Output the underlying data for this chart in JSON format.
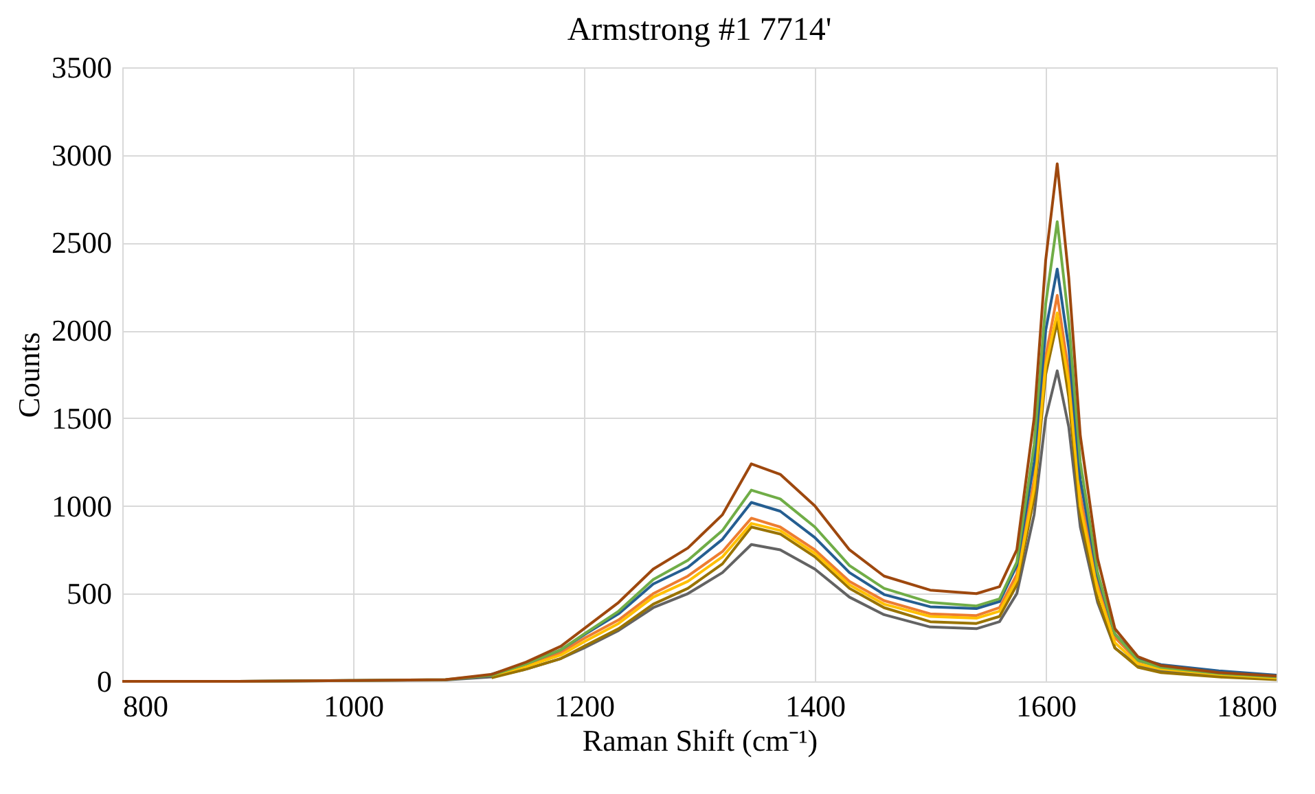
{
  "chart_data": {
    "type": "line",
    "title": "Armstrong #1 7714'",
    "xlabel": "Raman Shift (cm⁻¹)",
    "ylabel": "Counts",
    "x": [
      800,
      900,
      1000,
      1080,
      1120,
      1150,
      1180,
      1200,
      1230,
      1260,
      1290,
      1320,
      1345,
      1370,
      1400,
      1430,
      1460,
      1500,
      1540,
      1560,
      1575,
      1590,
      1600,
      1610,
      1620,
      1630,
      1645,
      1660,
      1680,
      1700,
      1750,
      1800
    ],
    "series": [
      {
        "color": "#636363",
        "values": [
          0,
          0,
          5,
          8,
          25,
          70,
          130,
          190,
          290,
          420,
          500,
          620,
          780,
          750,
          640,
          480,
          380,
          310,
          300,
          340,
          500,
          950,
          1500,
          1770,
          1450,
          880,
          450,
          190,
          90,
          60,
          35,
          20
        ]
      },
      {
        "color": "#997300",
        "values": [
          null,
          null,
          null,
          null,
          20,
          70,
          130,
          200,
          300,
          440,
          530,
          670,
          880,
          840,
          710,
          530,
          420,
          340,
          330,
          370,
          550,
          1050,
          1750,
          2050,
          1620,
          940,
          470,
          190,
          80,
          50,
          25,
          10
        ]
      },
      {
        "color": "#ed7d31",
        "values": [
          null,
          null,
          null,
          null,
          null,
          90,
          165,
          245,
          350,
          500,
          600,
          740,
          930,
          880,
          750,
          570,
          460,
          385,
          375,
          420,
          610,
          1150,
          1850,
          2200,
          1760,
          1060,
          560,
          250,
          115,
          85,
          50,
          25
        ]
      },
      {
        "color": "#ffc000",
        "values": [
          null,
          null,
          null,
          null,
          35,
          85,
          150,
          225,
          330,
          480,
          570,
          710,
          900,
          860,
          730,
          550,
          440,
          370,
          360,
          400,
          580,
          1100,
          1800,
          2100,
          1700,
          1000,
          520,
          220,
          100,
          70,
          40,
          20
        ]
      },
      {
        "color": "#255e91",
        "values": [
          null,
          null,
          null,
          null,
          40,
          100,
          180,
          265,
          385,
          555,
          650,
          810,
          1020,
          970,
          820,
          620,
          495,
          425,
          415,
          455,
          660,
          1250,
          2000,
          2350,
          1900,
          1150,
          600,
          270,
          130,
          95,
          60,
          35
        ]
      },
      {
        "color": "#70ad47",
        "values": [
          0,
          0,
          5,
          10,
          35,
          100,
          180,
          270,
          400,
          580,
          690,
          860,
          1090,
          1040,
          880,
          660,
          530,
          450,
          430,
          470,
          680,
          1350,
          2150,
          2620,
          2050,
          1250,
          620,
          270,
          120,
          80,
          45,
          25
        ]
      },
      {
        "color": "#9e480e",
        "values": [
          0,
          0,
          5,
          10,
          40,
          110,
          200,
          300,
          450,
          640,
          760,
          950,
          1240,
          1180,
          1000,
          750,
          600,
          520,
          500,
          540,
          750,
          1500,
          2400,
          2950,
          2300,
          1400,
          700,
          300,
          140,
          90,
          50,
          30
        ]
      }
    ],
    "xlim": [
      800,
      1800
    ],
    "xticks": [
      800,
      1000,
      1200,
      1400,
      1600,
      1800
    ],
    "ylim": [
      0,
      3500
    ],
    "yticks": [
      0,
      500,
      1000,
      1500,
      2000,
      2500,
      3000,
      3500
    ],
    "grid": true,
    "legend": false,
    "marker": "none",
    "line_style": "solid"
  }
}
